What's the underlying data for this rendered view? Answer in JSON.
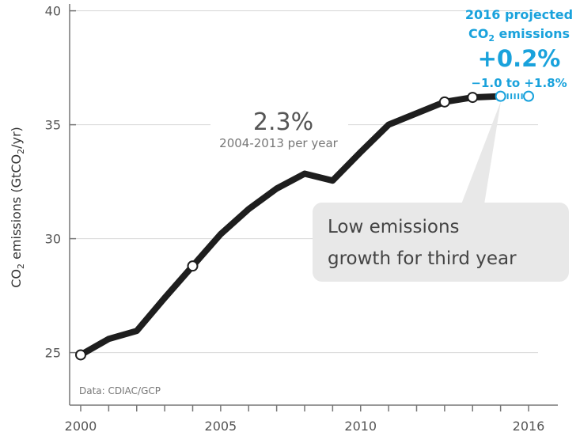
{
  "chart_data": {
    "type": "line",
    "title": "",
    "xlabel": "",
    "ylabel": "CO2 emissions (GtCO2/yr)",
    "x_ticks": [
      "2000",
      "2005",
      "2010",
      "2016"
    ],
    "y_ticks": [
      "25",
      "30",
      "35",
      "40"
    ],
    "xlim": [
      2000,
      2016.2
    ],
    "ylim": [
      24.5,
      40.3
    ],
    "grid": "horizontal",
    "series": [
      {
        "x": [
          2000,
          2001,
          2002,
          2003,
          2004,
          2005,
          2006,
          2007,
          2008,
          2009,
          2010,
          2011,
          2012,
          2013,
          2014,
          2015
        ],
        "values": [
          24.9,
          25.6,
          25.95,
          27.4,
          28.8,
          30.2,
          31.3,
          32.2,
          32.85,
          32.55,
          33.8,
          35.0,
          35.5,
          36.0,
          36.2,
          36.25
        ]
      }
    ],
    "highlighted_points": [
      2000,
      2004,
      2013,
      2014,
      2015
    ],
    "projection": {
      "from": [
        2015,
        36.25
      ],
      "to": [
        2016,
        36.25
      ]
    },
    "source": "Data: CDIAC/GCP",
    "growth_annotation": {
      "value": "2.3%",
      "period": "2004-2013 per year"
    },
    "callout": {
      "line1": "Low emissions",
      "line2": "growth for third year"
    },
    "projection_label": {
      "line1": "2016 projected",
      "line2_pre": "CO",
      "line2_sub": "2",
      "line2_post": " emissions",
      "value": "+0.2%",
      "range": "−1.0 to +1.8%"
    },
    "ylabel_parts": {
      "a": "CO",
      "a_sub": "2",
      "b": " emissions (GtCO",
      "b_sub": "2",
      "c": "/yr)"
    },
    "colors": {
      "line": "#1e1e1e",
      "accent": "#19a2dc",
      "callout_bg": "#e8e8e8",
      "grid": "#d8d8d8"
    }
  }
}
